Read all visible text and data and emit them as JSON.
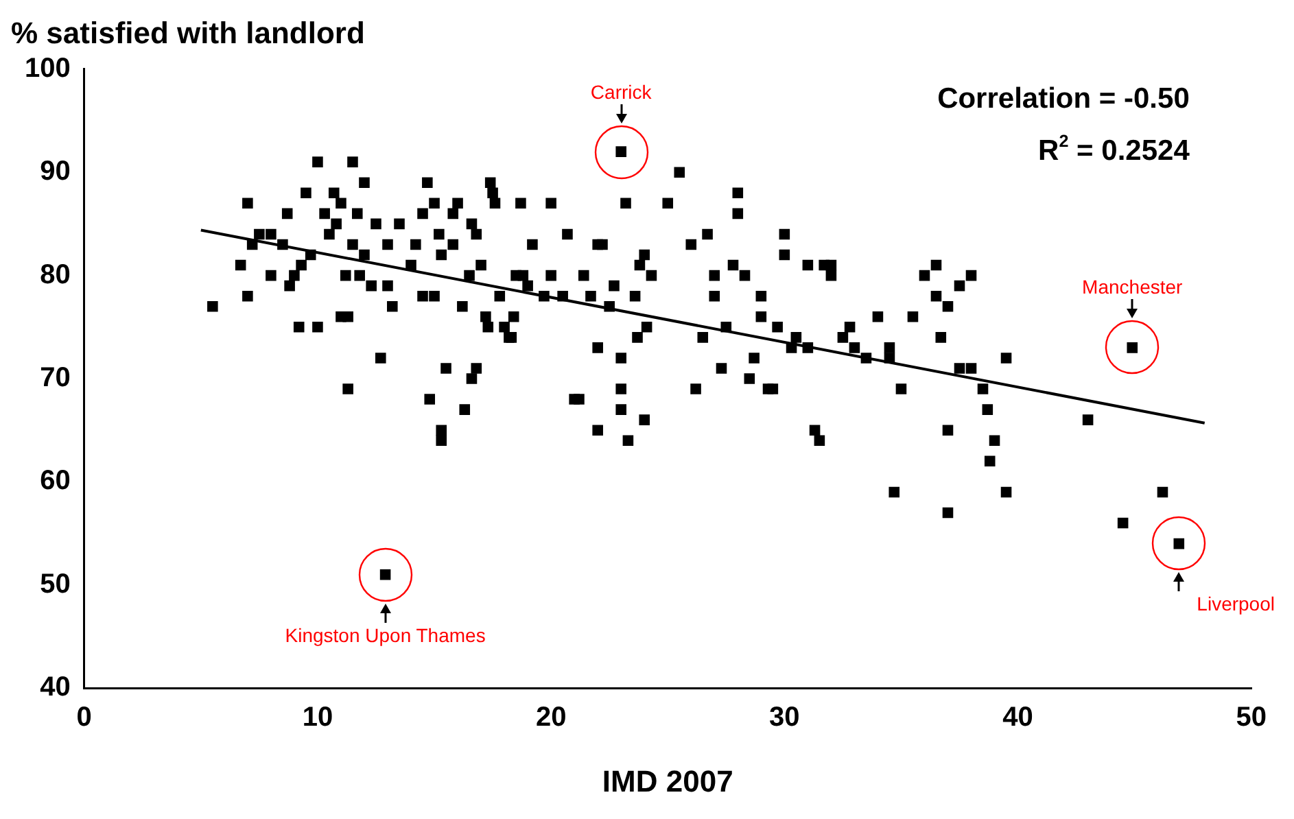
{
  "chart_data": {
    "type": "scatter",
    "ylabel": "% satisfied with landlord",
    "xlabel": "IMD 2007",
    "xlim": [
      0,
      50
    ],
    "xticks": [
      0,
      10,
      20,
      30,
      40,
      50
    ],
    "ylim": [
      40,
      100
    ],
    "yticks": [
      40,
      50,
      60,
      70,
      80,
      90,
      100
    ],
    "grid": false,
    "legend": false,
    "marker": "square",
    "series": [
      {
        "type": "scatter",
        "color": "#000000",
        "x": [
          5.5,
          6.7,
          7,
          7,
          7.2,
          7.5,
          8,
          8,
          8.5,
          8.7,
          8.8,
          9,
          9.2,
          9.3,
          9.5,
          9.7,
          10,
          10,
          10.3,
          10.5,
          10.7,
          10.8,
          11,
          11,
          11.2,
          11.3,
          11.3,
          11.5,
          11.5,
          11.7,
          11.8,
          12,
          12,
          12.3,
          12.5,
          12.7,
          13,
          13,
          13.2,
          13.5,
          12.9,
          14,
          14.2,
          14.5,
          14.5,
          14.7,
          14.8,
          15,
          15,
          15.2,
          15.3,
          15.5,
          15.3,
          15.3,
          15.8,
          15.8,
          16,
          16.2,
          16.3,
          16.5,
          16.6,
          16.6,
          16.8,
          16.8,
          17,
          17.2,
          17.3,
          17.4,
          17.5,
          17.6,
          17.8,
          18,
          18.2,
          18.3,
          18.4,
          18.5,
          18.7,
          18.8,
          19,
          19.2,
          19.7,
          20,
          20,
          20.5,
          20.7,
          21,
          21.2,
          21.4,
          21.7,
          22,
          22.2,
          22,
          22.5,
          22.7,
          22,
          23,
          23,
          23,
          23.2,
          23.3,
          23.6,
          23.7,
          23.8,
          24,
          24,
          24.1,
          24.3,
          23,
          25,
          25.5,
          26,
          26.2,
          26.5,
          26.7,
          27,
          27,
          27.3,
          27.5,
          27.8,
          28,
          28,
          28.3,
          28.5,
          28.7,
          29,
          29,
          29.3,
          29.5,
          29.7,
          30,
          30,
          30.3,
          30.5,
          31,
          31,
          31.3,
          31.5,
          31.7,
          32,
          32,
          32.5,
          32.8,
          33,
          33.5,
          34,
          34.5,
          34.5,
          34.7,
          35,
          35.5,
          36.5,
          36.7,
          37,
          37,
          37.5,
          38,
          38.5,
          38.8,
          39.5,
          36,
          36.5,
          37,
          37.5,
          38,
          38.7,
          39,
          39.5,
          43,
          44.9,
          44.5,
          46.2,
          46.9
        ],
        "values": [
          77,
          81,
          87,
          78,
          83,
          84,
          80,
          84,
          83,
          86,
          79,
          80,
          75,
          81,
          88,
          82,
          91,
          75,
          86,
          84,
          88,
          85,
          87,
          76,
          80,
          76,
          69,
          91,
          83,
          86,
          80,
          82,
          89,
          79,
          85,
          72,
          83,
          79,
          77,
          85,
          51,
          81,
          83,
          86,
          78,
          89,
          68,
          87,
          78,
          84,
          82,
          71,
          65,
          64,
          86,
          83,
          87,
          77,
          67,
          80,
          85,
          70,
          84,
          71,
          81,
          76,
          75,
          89,
          88,
          87,
          78,
          75,
          74,
          74,
          76,
          80,
          87,
          80,
          79,
          83,
          78,
          87,
          80,
          78,
          84,
          68,
          68,
          80,
          78,
          83,
          83,
          73,
          77,
          79,
          65,
          67,
          72,
          69,
          87,
          64,
          78,
          74,
          81,
          82,
          66,
          75,
          80,
          92,
          87,
          90,
          83,
          69,
          74,
          84,
          80,
          78,
          71,
          75,
          81,
          88,
          86,
          80,
          70,
          72,
          78,
          76,
          69,
          69,
          75,
          82,
          84,
          73,
          74,
          81,
          73,
          65,
          64,
          81,
          81,
          80,
          74,
          75,
          73,
          72,
          76,
          72,
          73,
          59,
          69,
          76,
          81,
          74,
          65,
          57,
          71,
          71,
          69,
          62,
          59,
          80,
          78,
          77,
          79,
          80,
          67,
          64,
          72,
          66,
          73,
          56,
          59,
          54
        ]
      },
      {
        "type": "line",
        "color": "#000000",
        "x": [
          5,
          48
        ],
        "values": [
          84.4,
          65.7
        ],
        "marker": "none"
      }
    ],
    "annotations": [
      "Correlation = -0.50",
      "R$^{2}$ = 0.2524",
      {
        "text": "Carrick",
        "x": 23,
        "y": 92
      },
      {
        "text": "Manchester",
        "x": 44.9,
        "y": 73
      },
      {
        "text": "Liverpool",
        "x": 46.9,
        "y": 54
      },
      {
        "text": "Kingston Upon Thames",
        "x": 12.9,
        "y": 51
      }
    ]
  }
}
